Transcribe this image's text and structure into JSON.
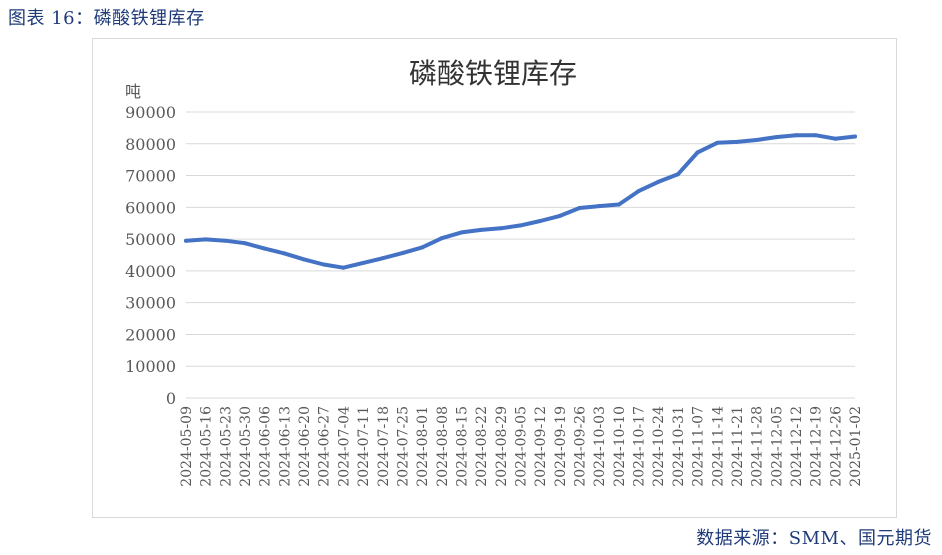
{
  "caption": "图表 16：磷酸铁锂库存",
  "source": "数据来源：SMM、国元期货",
  "colors": {
    "line": "#4472c4",
    "grid": "#d9d9d9",
    "axis_text": "#595959",
    "caption": "#1f3b7a"
  },
  "chart_data": {
    "type": "line",
    "title": "磷酸铁锂库存",
    "ylabel": "吨",
    "xlabel": "",
    "ylim": [
      0,
      90000
    ],
    "yticks": [
      0,
      10000,
      20000,
      30000,
      40000,
      50000,
      60000,
      70000,
      80000,
      90000
    ],
    "grid": true,
    "legend": "none",
    "categories": [
      "2024-05-09",
      "2024-05-16",
      "2024-05-23",
      "2024-05-30",
      "2024-06-06",
      "2024-06-13",
      "2024-06-20",
      "2024-06-27",
      "2024-07-04",
      "2024-07-11",
      "2024-07-18",
      "2024-07-25",
      "2024-08-01",
      "2024-08-08",
      "2024-08-15",
      "2024-08-22",
      "2024-08-29",
      "2024-09-05",
      "2024-09-12",
      "2024-09-19",
      "2024-09-26",
      "2024-10-03",
      "2024-10-10",
      "2024-10-17",
      "2024-10-24",
      "2024-10-31",
      "2024-11-07",
      "2024-11-14",
      "2024-11-21",
      "2024-11-28",
      "2024-12-05",
      "2024-12-12",
      "2024-12-19",
      "2024-12-26",
      "2025-01-02"
    ],
    "series": [
      {
        "name": "",
        "values": [
          49500,
          49900,
          49500,
          48700,
          47000,
          45500,
          43600,
          42000,
          41000,
          42500,
          44000,
          45600,
          47400,
          50300,
          52100,
          52900,
          53400,
          54300,
          55700,
          57300,
          59800,
          60400,
          60900,
          65100,
          68000,
          70400,
          77300,
          80300,
          80600,
          81200,
          82100,
          82700,
          82700,
          81600,
          82300
        ]
      }
    ]
  }
}
